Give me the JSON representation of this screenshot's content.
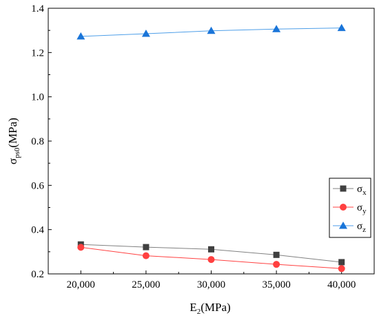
{
  "chart_data": {
    "type": "line",
    "xlabel": "E",
    "xlabel_sub": "2",
    "xlabel_unit": "(MPa)",
    "ylabel": "σ",
    "ylabel_sub": "ps0",
    "ylabel_unit": "(MPa)",
    "x": [
      20000,
      25000,
      30000,
      35000,
      40000
    ],
    "x_tick_labels": [
      "20,000",
      "25,000",
      "30,000",
      "35,000",
      "40,000"
    ],
    "xlim": [
      17500,
      42500
    ],
    "ylim": [
      0.2,
      1.4
    ],
    "y_ticks": [
      0.2,
      0.4,
      0.6,
      0.8,
      1.0,
      1.2,
      1.4
    ],
    "y_tick_labels": [
      "0.2",
      "0.4",
      "0.6",
      "0.8",
      "1.0",
      "1.2",
      "1.4"
    ],
    "grid": false,
    "legend_position": "right",
    "series": [
      {
        "name": "σ",
        "sub": "x",
        "marker": "square",
        "color": "#404040",
        "line_color": "#808080",
        "values": [
          0.333,
          0.321,
          0.311,
          0.286,
          0.253
        ]
      },
      {
        "name": "σ",
        "sub": "y",
        "marker": "circle",
        "color": "#ff4040",
        "line_color": "#ff4040",
        "values": [
          0.32,
          0.282,
          0.265,
          0.243,
          0.224
        ]
      },
      {
        "name": "σ",
        "sub": "z",
        "marker": "triangle",
        "color": "#1a75d9",
        "line_color": "#4d9ee8",
        "values": [
          1.273,
          1.285,
          1.298,
          1.306,
          1.311
        ]
      }
    ]
  }
}
